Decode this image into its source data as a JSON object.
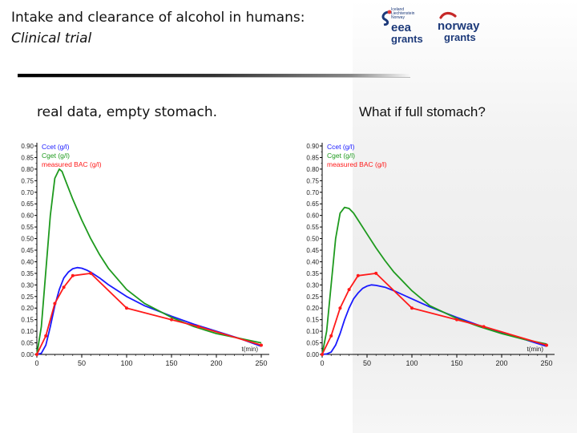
{
  "header": {
    "title_line1": "Intake and clearance of alcohol in humans:",
    "title_line2": "Clinical trial"
  },
  "logos": {
    "eea": {
      "word1": "eea",
      "word2": "grants",
      "tiny_text": [
        "Iceland",
        "Liechtenstein",
        "Norway"
      ]
    },
    "norway": {
      "word1": "norway",
      "word2": "grants"
    }
  },
  "captions": {
    "left": "real data, empty stomach.",
    "right": "What if full stomach?"
  },
  "colors": {
    "ccet": "#1a1aff",
    "cget": "#1e9a1e",
    "measured": "#ff1a1a",
    "axis": "#000000"
  },
  "chart_data": [
    {
      "type": "line",
      "title": "real data, empty stomach.",
      "xlabel": "t(min)",
      "ylabel": "",
      "xlim": [
        0,
        250
      ],
      "ylim": [
        0,
        0.9
      ],
      "x_ticks": [
        "0",
        "50",
        "100",
        "150",
        "200",
        "250"
      ],
      "y_ticks": [
        "0.00",
        "0.05",
        "0.10",
        "0.15",
        "0.20",
        "0.25",
        "0.30",
        "0.35",
        "0.40",
        "0.45",
        "0.50",
        "0.55",
        "0.60",
        "0.65",
        "0.70",
        "0.75",
        "0.80",
        "0.85",
        "0.90"
      ],
      "legend": [
        "Ccet (g/l)",
        "Cget (g/l)",
        "measured BAC (g/l)"
      ],
      "series": [
        {
          "name": "Ccet (g/l)",
          "color": "#1a1aff",
          "markers": false,
          "x": [
            0,
            5,
            10,
            15,
            20,
            25,
            30,
            35,
            40,
            45,
            50,
            55,
            60,
            70,
            80,
            100,
            120,
            150,
            175,
            200,
            225,
            250
          ],
          "y": [
            0,
            0.005,
            0.04,
            0.12,
            0.21,
            0.28,
            0.33,
            0.355,
            0.37,
            0.375,
            0.372,
            0.365,
            0.355,
            0.33,
            0.3,
            0.25,
            0.21,
            0.165,
            0.13,
            0.1,
            0.07,
            0.035
          ]
        },
        {
          "name": "Cget (g/l)",
          "color": "#1e9a1e",
          "markers": false,
          "x": [
            0,
            5,
            10,
            15,
            20,
            25,
            28,
            32,
            40,
            50,
            60,
            70,
            80,
            100,
            120,
            150,
            175,
            200,
            225,
            250
          ],
          "y": [
            0,
            0.12,
            0.36,
            0.6,
            0.76,
            0.8,
            0.79,
            0.75,
            0.67,
            0.58,
            0.5,
            0.43,
            0.37,
            0.28,
            0.22,
            0.16,
            0.12,
            0.09,
            0.07,
            0.05
          ]
        },
        {
          "name": "measured BAC (g/l)",
          "color": "#ff1a1a",
          "markers": true,
          "x": [
            0,
            10,
            20,
            30,
            40,
            60,
            100,
            150,
            180,
            250
          ],
          "y": [
            0,
            0.08,
            0.22,
            0.29,
            0.34,
            0.35,
            0.2,
            0.15,
            0.12,
            0.04
          ]
        }
      ]
    },
    {
      "type": "line",
      "title": "What if full stomach?",
      "xlabel": "t(min)",
      "ylabel": "",
      "xlim": [
        0,
        250
      ],
      "ylim": [
        0,
        0.9
      ],
      "x_ticks": [
        "0",
        "50",
        "100",
        "150",
        "200",
        "250"
      ],
      "y_ticks": [
        "0.00",
        "0.05",
        "0.10",
        "0.15",
        "0.20",
        "0.25",
        "0.30",
        "0.35",
        "0.40",
        "0.45",
        "0.50",
        "0.55",
        "0.60",
        "0.65",
        "0.70",
        "0.75",
        "0.80",
        "0.85",
        "0.90"
      ],
      "legend": [
        "Ccet (g/l)",
        "Cget (g/l)",
        "measured BAC (g/l)"
      ],
      "series": [
        {
          "name": "Ccet (g/l)",
          "color": "#1a1aff",
          "markers": false,
          "x": [
            0,
            5,
            10,
            15,
            20,
            25,
            30,
            35,
            40,
            45,
            50,
            55,
            60,
            70,
            80,
            100,
            120,
            150,
            175,
            200,
            225,
            250
          ],
          "y": [
            0,
            0.002,
            0.01,
            0.04,
            0.09,
            0.15,
            0.2,
            0.24,
            0.265,
            0.285,
            0.295,
            0.3,
            0.298,
            0.29,
            0.275,
            0.24,
            0.205,
            0.16,
            0.125,
            0.095,
            0.065,
            0.035
          ]
        },
        {
          "name": "Cget (g/l)",
          "color": "#1e9a1e",
          "markers": false,
          "x": [
            0,
            5,
            10,
            15,
            20,
            25,
            30,
            35,
            40,
            50,
            60,
            70,
            80,
            100,
            120,
            150,
            175,
            200,
            225,
            250
          ],
          "y": [
            0,
            0.1,
            0.3,
            0.5,
            0.61,
            0.635,
            0.63,
            0.61,
            0.58,
            0.52,
            0.46,
            0.405,
            0.355,
            0.275,
            0.21,
            0.155,
            0.12,
            0.09,
            0.065,
            0.045
          ]
        },
        {
          "name": "measured BAC (g/l)",
          "color": "#ff1a1a",
          "markers": true,
          "x": [
            0,
            10,
            20,
            30,
            40,
            60,
            100,
            150,
            180,
            250
          ],
          "y": [
            0,
            0.08,
            0.2,
            0.28,
            0.34,
            0.35,
            0.2,
            0.15,
            0.12,
            0.04
          ]
        }
      ]
    }
  ]
}
